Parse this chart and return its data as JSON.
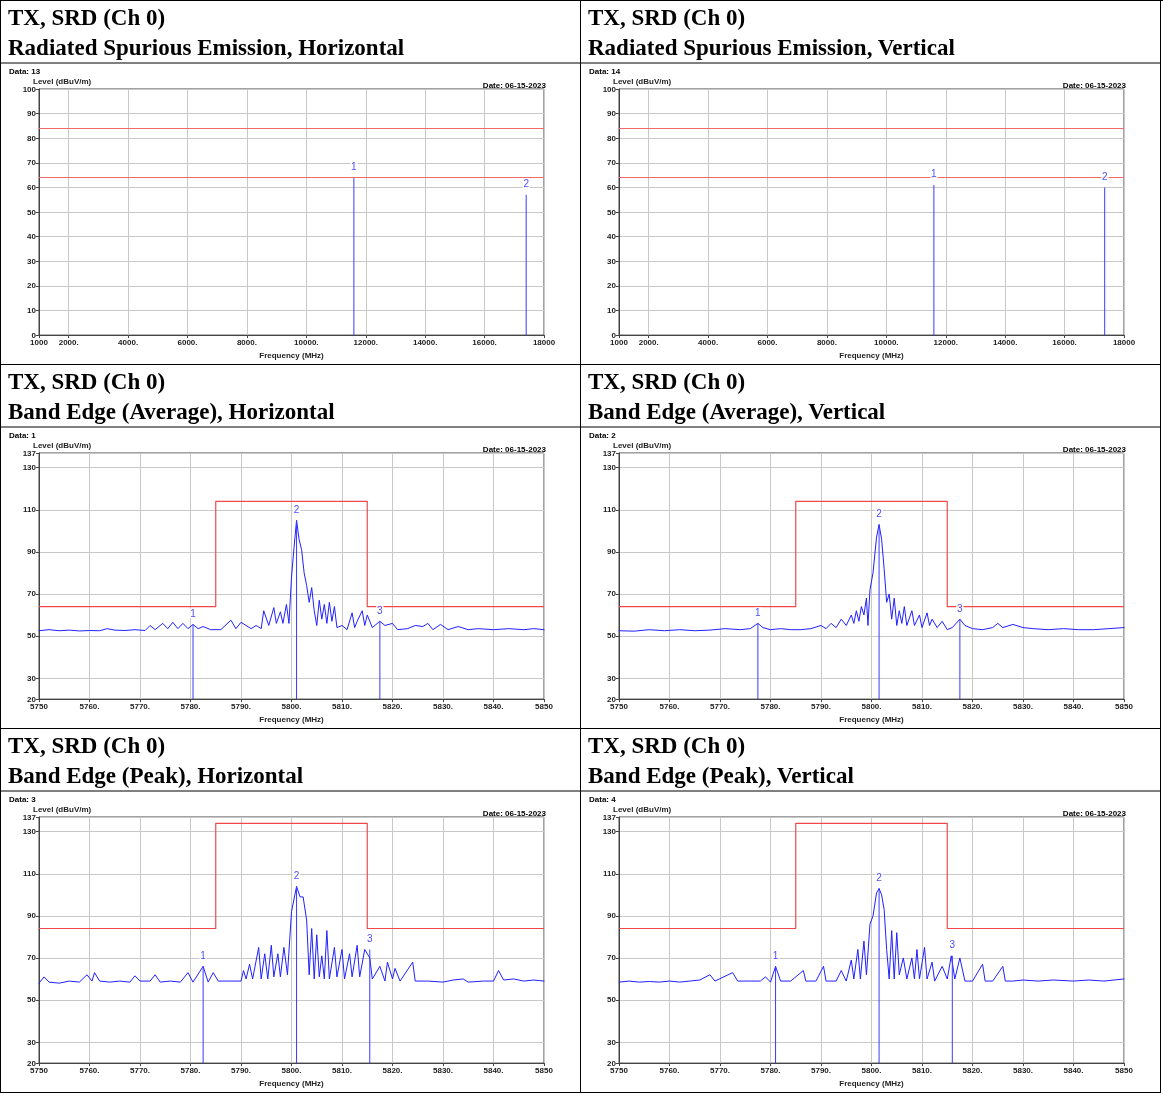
{
  "chart_data": [
    {
      "type": "bar",
      "title": "TX, SRD (Ch 0)",
      "subtitle": "Radiated Spurious Emission, Horizontal",
      "xlabel": "Frequency (MHz)",
      "ylabel": "Level (dBuV/m)",
      "annotations": [
        "Data: 13",
        "Date: 06-15-2023",
        {
          "text": "1",
          "x": 11600,
          "y": 64
        },
        {
          "text": "2",
          "x": 17400,
          "y": 57
        }
      ],
      "xlim": [
        1000,
        18000
      ],
      "xticks": [
        1000,
        {
          "value": 2000,
          "label": "2000."
        },
        {
          "value": 4000,
          "label": "4000."
        },
        {
          "value": 6000,
          "label": "6000."
        },
        {
          "value": 8000,
          "label": "8000."
        },
        {
          "value": 10000,
          "label": "10000."
        },
        {
          "value": 12000,
          "label": "12000."
        },
        {
          "value": 14000,
          "label": "14000."
        },
        {
          "value": 16000,
          "label": "16000."
        },
        18000
      ],
      "ylim": [
        0,
        100
      ],
      "yticks": [
        0,
        10,
        20,
        30,
        40,
        50,
        60,
        70,
        80,
        90,
        100
      ],
      "grid": true,
      "ref_lines": [
        {
          "axis": "y",
          "value": 84,
          "color": "#f06868"
        },
        {
          "axis": "y",
          "value": 64,
          "color": "#f06868"
        }
      ],
      "series": [
        {
          "color": "#3a3aff",
          "x": [
            11600,
            17400
          ],
          "values": [
            64,
            57
          ]
        }
      ]
    },
    {
      "type": "bar",
      "title": "TX, SRD (Ch 0)",
      "subtitle": "Radiated Spurious Emission, Vertical",
      "xlabel": "Frequency (MHz)",
      "ylabel": "Level (dBuV/m)",
      "annotations": [
        "Data: 14",
        "Date: 06-15-2023",
        {
          "text": "1",
          "x": 11600,
          "y": 61
        },
        {
          "text": "2",
          "x": 17350,
          "y": 60
        }
      ],
      "xlim": [
        1000,
        18000
      ],
      "xticks": [
        1000,
        {
          "value": 2000,
          "label": "2000."
        },
        {
          "value": 4000,
          "label": "4000."
        },
        {
          "value": 6000,
          "label": "6000."
        },
        {
          "value": 8000,
          "label": "8000."
        },
        {
          "value": 10000,
          "label": "10000."
        },
        {
          "value": 12000,
          "label": "12000."
        },
        {
          "value": 14000,
          "label": "14000."
        },
        {
          "value": 16000,
          "label": "16000."
        },
        18000
      ],
      "ylim": [
        0,
        100
      ],
      "yticks": [
        0,
        10,
        20,
        30,
        40,
        50,
        60,
        70,
        80,
        90,
        100
      ],
      "grid": true,
      "ref_lines": [
        {
          "axis": "y",
          "value": 84,
          "color": "#f06868"
        },
        {
          "axis": "y",
          "value": 64,
          "color": "#f06868"
        }
      ],
      "series": [
        {
          "color": "#3a3aff",
          "x": [
            11600,
            17350
          ],
          "values": [
            61,
            60
          ]
        }
      ]
    },
    {
      "type": "line",
      "title": "TX, SRD (Ch 0)",
      "subtitle": "Band Edge (Average), Horizontal",
      "xlabel": "Frequency (MHz)",
      "ylabel": "Level (dBuV/m)",
      "annotations": [
        "Data: 1",
        "Date: 06-15-2023",
        {
          "text": "1",
          "x": 5780.5,
          "y": 55.5
        },
        {
          "text": "2",
          "x": 5801,
          "y": 105
        },
        {
          "text": "3",
          "x": 5817.5,
          "y": 57
        }
      ],
      "xlim": [
        5750,
        5850
      ],
      "xticks": [
        5750,
        {
          "value": 5760,
          "label": "5760."
        },
        {
          "value": 5770,
          "label": "5770."
        },
        {
          "value": 5780,
          "label": "5780."
        },
        {
          "value": 5790,
          "label": "5790."
        },
        {
          "value": 5800,
          "label": "5800."
        },
        {
          "value": 5810,
          "label": "5810."
        },
        {
          "value": 5820,
          "label": "5820."
        },
        {
          "value": 5830,
          "label": "5830."
        },
        {
          "value": 5840,
          "label": "5840."
        },
        5850
      ],
      "ylim": [
        20,
        137
      ],
      "yticks": [
        20,
        30,
        50,
        70,
        90,
        110,
        130,
        137
      ],
      "grid": true,
      "series": [
        {
          "color": "#2020ff",
          "x": [
            5750,
            5752,
            5754,
            5756,
            5758,
            5760,
            5762,
            5763.5,
            5765,
            5767,
            5769,
            5771,
            5772,
            5773,
            5774.5,
            5775.5,
            5776.5,
            5777.5,
            5778.5,
            5779.5,
            5780.5,
            5781.5,
            5782.5,
            5784,
            5786,
            5788,
            5789,
            5790,
            5791,
            5792,
            5793,
            5794,
            5794.5,
            5795.5,
            5796.5,
            5797,
            5797.8,
            5798.3,
            5799,
            5799.5,
            5800,
            5800.5,
            5801,
            5801.5,
            5802,
            5802.5,
            5803,
            5803.5,
            5804,
            5804.5,
            5805,
            5805.5,
            5806,
            5806.5,
            5807,
            5807.5,
            5808,
            5808.5,
            5809,
            5810,
            5811,
            5812,
            5812.5,
            5813,
            5814,
            5814.5,
            5815,
            5816,
            5817.5,
            5818.5,
            5820,
            5821,
            5823,
            5824.5,
            5826,
            5827,
            5828,
            5829.5,
            5831,
            5833,
            5835,
            5837,
            5840,
            5843,
            5846,
            5848,
            5850
          ],
          "values": [
            52.5,
            53,
            52.5,
            52.8,
            52.4,
            52.6,
            52.5,
            53.5,
            52.8,
            52.6,
            53,
            52.6,
            55,
            53,
            56,
            53.5,
            56.5,
            53.5,
            56,
            53.5,
            55.5,
            53.5,
            54.5,
            53,
            53,
            57.5,
            53.5,
            56.5,
            55,
            53.5,
            55,
            53.5,
            62,
            55,
            63.5,
            56,
            61.5,
            56,
            65,
            56,
            78,
            92,
            105,
            96,
            91,
            80,
            74,
            66,
            73,
            62,
            55,
            67,
            58,
            65,
            56,
            66,
            57,
            64,
            54,
            55,
            53,
            61,
            54,
            57,
            62,
            55,
            60,
            54,
            57,
            55,
            56,
            53,
            53.5,
            55,
            54.5,
            56,
            53,
            55.5,
            53,
            54.5,
            53,
            53.5,
            53,
            53.5,
            53,
            53.5,
            53
          ]
        },
        {
          "type": "step",
          "color": "#f04848",
          "x": [
            5750,
            5785,
            5815,
            5850
          ],
          "values": [
            64,
            114,
            64,
            64
          ]
        },
        {
          "type": "bar",
          "color": "#3a3aff",
          "x": [
            5780.5,
            5801,
            5817.5
          ],
          "values": [
            55.5,
            105,
            57
          ]
        }
      ]
    },
    {
      "type": "line",
      "title": "TX, SRD (Ch 0)",
      "subtitle": "Band Edge (Average), Vertical",
      "xlabel": "Frequency (MHz)",
      "ylabel": "Level (dBuV/m)",
      "annotations": [
        "Data: 2",
        "Date: 06-15-2023",
        {
          "text": "1",
          "x": 5777.5,
          "y": 56
        },
        {
          "text": "2",
          "x": 5801.5,
          "y": 103
        },
        {
          "text": "3",
          "x": 5817.5,
          "y": 58
        }
      ],
      "xlim": [
        5750,
        5850
      ],
      "xticks": [
        5750,
        {
          "value": 5760,
          "label": "5760."
        },
        {
          "value": 5770,
          "label": "5770."
        },
        {
          "value": 5780,
          "label": "5780."
        },
        {
          "value": 5790,
          "label": "5790."
        },
        {
          "value": 5800,
          "label": "5800."
        },
        {
          "value": 5810,
          "label": "5810."
        },
        {
          "value": 5820,
          "label": "5820."
        },
        {
          "value": 5830,
          "label": "5830."
        },
        {
          "value": 5840,
          "label": "5840."
        },
        5850
      ],
      "ylim": [
        20,
        137
      ],
      "yticks": [
        20,
        30,
        50,
        70,
        90,
        110,
        130,
        137
      ],
      "grid": true,
      "series": [
        {
          "color": "#2020ff",
          "x": [
            5750,
            5753,
            5756,
            5759,
            5762,
            5765,
            5768,
            5771,
            5774,
            5776,
            5777.5,
            5778.5,
            5780,
            5782,
            5784,
            5786,
            5788,
            5790,
            5791,
            5792,
            5793,
            5794,
            5795,
            5796,
            5796.5,
            5797,
            5797.5,
            5798,
            5798.5,
            5799,
            5799.3,
            5799.7,
            5800.3,
            5801,
            5801.5,
            5802,
            5802.5,
            5803,
            5803.5,
            5804,
            5804.5,
            5805,
            5805.5,
            5806,
            5806.5,
            5807,
            5808,
            5808.5,
            5809.5,
            5810,
            5811,
            5811.5,
            5812,
            5813,
            5814,
            5815,
            5816,
            5817.5,
            5818.5,
            5820,
            5822,
            5824,
            5825,
            5826,
            5828,
            5830,
            5832,
            5835,
            5838,
            5841,
            5844,
            5847,
            5850
          ],
          "values": [
            52.5,
            52.3,
            53,
            52.5,
            53,
            52.5,
            52.8,
            53.5,
            53,
            53.5,
            56,
            54,
            53,
            53.5,
            53,
            53,
            53.5,
            55,
            53.5,
            56,
            54,
            58,
            55,
            60,
            56,
            62,
            57,
            64,
            60,
            68,
            55,
            72,
            80,
            97,
            103,
            96,
            82,
            66,
            70,
            58,
            68,
            55,
            62,
            56,
            64,
            55,
            62,
            55,
            60,
            54,
            61,
            55,
            58,
            54,
            57,
            53,
            54,
            58,
            55,
            53.5,
            53,
            54,
            56,
            54,
            55.5,
            54,
            53.5,
            53,
            53.5,
            53,
            53,
            53.5,
            54
          ]
        },
        {
          "type": "step",
          "color": "#f04848",
          "x": [
            5750,
            5785,
            5815,
            5850
          ],
          "values": [
            64,
            114,
            64,
            64
          ]
        },
        {
          "type": "bar",
          "color": "#3a3aff",
          "x": [
            5777.5,
            5801.5,
            5817.5
          ],
          "values": [
            56,
            103,
            58
          ]
        }
      ]
    },
    {
      "type": "line",
      "title": "TX, SRD (Ch 0)",
      "subtitle": "Band Edge (Peak), Horizontal",
      "xlabel": "Frequency (MHz)",
      "ylabel": "Level (dBuV/m)",
      "annotations": [
        "Data: 3",
        "Date: 06-15-2023",
        {
          "text": "1",
          "x": 5782.5,
          "y": 66
        },
        {
          "text": "2",
          "x": 5801,
          "y": 104
        },
        {
          "text": "3",
          "x": 5815.5,
          "y": 74
        }
      ],
      "xlim": [
        5750,
        5850
      ],
      "xticks": [
        5750,
        {
          "value": 5760,
          "label": "5760."
        },
        {
          "value": 5770,
          "label": "5770."
        },
        {
          "value": 5780,
          "label": "5780."
        },
        {
          "value": 5790,
          "label": "5790."
        },
        {
          "value": 5800,
          "label": "5800."
        },
        {
          "value": 5810,
          "label": "5810."
        },
        {
          "value": 5820,
          "label": "5820."
        },
        {
          "value": 5830,
          "label": "5830."
        },
        {
          "value": 5840,
          "label": "5840."
        },
        5850
      ],
      "ylim": [
        20,
        137
      ],
      "yticks": [
        20,
        30,
        50,
        70,
        90,
        110,
        130,
        137
      ],
      "grid": true,
      "series": [
        {
          "color": "#2020ff",
          "x": [
            5750,
            5751,
            5752,
            5754,
            5756,
            5758,
            5759.5,
            5760.5,
            5761,
            5762,
            5764,
            5766,
            5768,
            5769,
            5770,
            5772,
            5773,
            5774,
            5776,
            5778,
            5779.5,
            5780.5,
            5782.5,
            5783.5,
            5784.5,
            5785.5,
            5788,
            5790,
            5790.5,
            5791,
            5791.7,
            5792.3,
            5793.5,
            5794,
            5794.7,
            5795.3,
            5796,
            5796.5,
            5797.3,
            5797.8,
            5798.5,
            5799.2,
            5800,
            5801,
            5801.7,
            5802.3,
            5803,
            5803.5,
            5804,
            5804.5,
            5805,
            5805.5,
            5806,
            5806.5,
            5807,
            5807.5,
            5808.5,
            5809,
            5810,
            5810.5,
            5811.5,
            5812,
            5813,
            5813.5,
            5814.5,
            5815.5,
            5816,
            5817.5,
            5818.5,
            5819,
            5820,
            5820.5,
            5821.5,
            5824,
            5824.5,
            5827,
            5830,
            5832,
            5834,
            5835,
            5838,
            5840,
            5841,
            5842,
            5844,
            5846,
            5848,
            5850
          ],
          "values": [
            58,
            61,
            58.5,
            58,
            59,
            58.5,
            62,
            59,
            63,
            59,
            58.5,
            59,
            58.5,
            61.5,
            59,
            59,
            62,
            58.5,
            59,
            58.5,
            63,
            58.5,
            66,
            58.5,
            63,
            59,
            59,
            59,
            64,
            60,
            67,
            60,
            75,
            60,
            72,
            60,
            76,
            61,
            72,
            61,
            75,
            62,
            92,
            104,
            99,
            99,
            88,
            62,
            84,
            60,
            81,
            61,
            71,
            60,
            83,
            60,
            75,
            61,
            74,
            60,
            72,
            61,
            76,
            61,
            74,
            70,
            60,
            66,
            59,
            68,
            60,
            65,
            59,
            68,
            59,
            59,
            58.5,
            59.5,
            60,
            58.5,
            59,
            59,
            64,
            59.5,
            60,
            59,
            59.5,
            59
          ]
        },
        {
          "type": "step",
          "color": "#f04848",
          "x": [
            5750,
            5785,
            5815,
            5850
          ],
          "values": [
            84,
            134,
            84,
            84
          ]
        },
        {
          "type": "bar",
          "color": "#3a3aff",
          "x": [
            5782.5,
            5801,
            5815.5
          ],
          "values": [
            66,
            104,
            74
          ]
        }
      ]
    },
    {
      "type": "line",
      "title": "TX, SRD (Ch 0)",
      "subtitle": "Band Edge (Peak), Vertical",
      "xlabel": "Frequency (MHz)",
      "ylabel": "Level (dBuV/m)",
      "annotations": [
        "Data: 4",
        "Date: 06-15-2023",
        {
          "text": "1",
          "x": 5781,
          "y": 66
        },
        {
          "text": "2",
          "x": 5801.5,
          "y": 103
        },
        {
          "text": "3",
          "x": 5816,
          "y": 71
        }
      ],
      "xlim": [
        5750,
        5850
      ],
      "xticks": [
        5750,
        {
          "value": 5760,
          "label": "5760."
        },
        {
          "value": 5770,
          "label": "5770."
        },
        {
          "value": 5780,
          "label": "5780."
        },
        {
          "value": 5790,
          "label": "5790."
        },
        {
          "value": 5800,
          "label": "5800."
        },
        {
          "value": 5810,
          "label": "5810."
        },
        {
          "value": 5820,
          "label": "5820."
        },
        {
          "value": 5830,
          "label": "5830."
        },
        {
          "value": 5840,
          "label": "5840."
        },
        5850
      ],
      "ylim": [
        20,
        137
      ],
      "yticks": [
        20,
        30,
        50,
        70,
        90,
        110,
        130,
        137
      ],
      "grid": true,
      "series": [
        {
          "color": "#2020ff",
          "x": [
            5750,
            5752,
            5754,
            5756,
            5758,
            5760,
            5762,
            5764,
            5766,
            5768,
            5769,
            5772.5,
            5773.5,
            5776,
            5778,
            5779,
            5780,
            5781,
            5782,
            5784,
            5786.5,
            5787,
            5789,
            5790.5,
            5791,
            5793,
            5794,
            5795,
            5796,
            5796.5,
            5797.3,
            5797.8,
            5798.5,
            5799,
            5799.7,
            5800.3,
            5801,
            5801.5,
            5802,
            5802.5,
            5803,
            5803.5,
            5804,
            5804.5,
            5805,
            5805.5,
            5806.3,
            5807,
            5808,
            5808.5,
            5809,
            5809.5,
            5810.5,
            5811,
            5812,
            5812.5,
            5814,
            5815,
            5815.8,
            5816.5,
            5817.5,
            5818.5,
            5820,
            5822,
            5822.5,
            5824,
            5826,
            5826.5,
            5828,
            5830,
            5833,
            5836,
            5840,
            5843,
            5846,
            5850
          ],
          "values": [
            58.5,
            59,
            58.5,
            58.8,
            58.5,
            59,
            58.5,
            59,
            59.5,
            62,
            59,
            63,
            59,
            59,
            59,
            61,
            58.5,
            66,
            59,
            59,
            64,
            59,
            59,
            66,
            59,
            59,
            64,
            59,
            69,
            60,
            74,
            60,
            78,
            62,
            86,
            90,
            101,
            103,
            100,
            93,
            74,
            60,
            83,
            60,
            82,
            62,
            70,
            60,
            70,
            60,
            74,
            60,
            75,
            60,
            68,
            59,
            66,
            60,
            71,
            60,
            70,
            59,
            59,
            67,
            59,
            59,
            66,
            59,
            59,
            59.5,
            59,
            59.5,
            59,
            59.5,
            59,
            60
          ]
        },
        {
          "type": "step",
          "color": "#f04848",
          "x": [
            5750,
            5785,
            5815,
            5850
          ],
          "values": [
            84,
            134,
            84,
            84
          ]
        },
        {
          "type": "bar",
          "color": "#3a3aff",
          "x": [
            5781,
            5801.5,
            5816
          ],
          "values": [
            66,
            103,
            71
          ]
        }
      ]
    }
  ]
}
